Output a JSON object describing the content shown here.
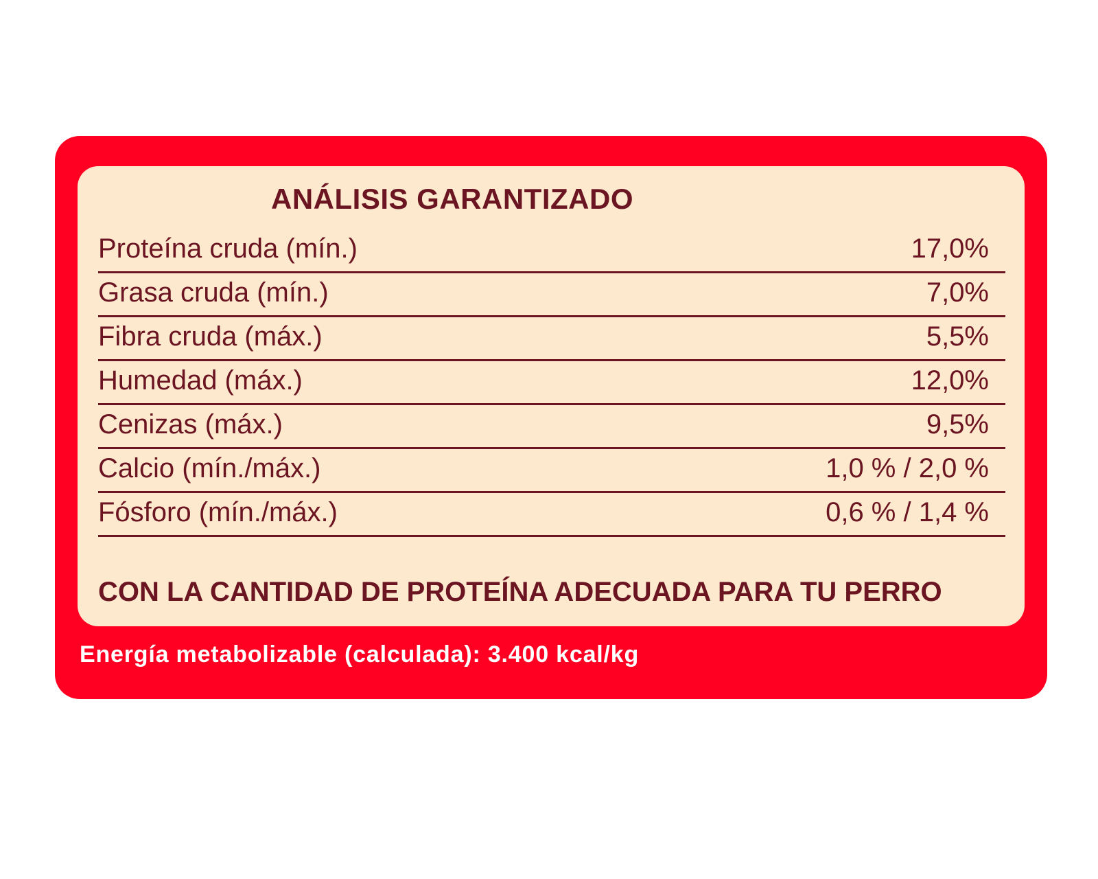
{
  "label": {
    "title": "ANÁLISIS GARANTIZADO",
    "rows": [
      {
        "name": "Proteína cruda (mín.)",
        "value": "17,0%"
      },
      {
        "name": "Grasa cruda (mín.)",
        "value": "7,0%"
      },
      {
        "name": "Fibra cruda (máx.)",
        "value": "5,5%"
      },
      {
        "name": "Humedad (máx.)",
        "value": "12,0%"
      },
      {
        "name": "Cenizas (máx.)",
        "value": "9,5%"
      },
      {
        "name": "Calcio (mín./máx.)",
        "value": "1,0 % / 2,0 %"
      },
      {
        "name": "Fósforo (mín./máx.)",
        "value": "0,6 % / 1,4 %"
      }
    ],
    "claim": "CON LA CANTIDAD DE PROTEÍNA ADECUADA PARA TU PERRO",
    "energy": "Energía metabolizable (calculada): 3.400 kcal/kg"
  },
  "colors": {
    "outer_red": "#ff0022",
    "panel_cream": "#fde9cd",
    "text_maroon": "#6b1422",
    "energy_text": "#ffffff"
  }
}
